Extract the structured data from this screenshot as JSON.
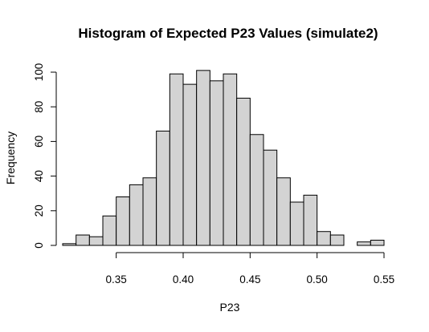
{
  "chart_data": {
    "type": "bar",
    "title": "Histogram of Expected P23 Values (simulate2)",
    "xlabel": "P23",
    "ylabel": "Frequency",
    "bin_width": 0.01,
    "bin_start": 0.31,
    "frequencies": [
      1,
      6,
      5,
      17,
      28,
      35,
      39,
      66,
      99,
      93,
      101,
      95,
      99,
      85,
      64,
      55,
      39,
      25,
      29,
      8,
      6,
      0,
      2,
      3
    ],
    "xlim": [
      0.31,
      0.55
    ],
    "ylim": [
      0,
      100
    ],
    "x_ticks": [
      "0.35",
      "0.40",
      "0.45",
      "0.50",
      "0.55"
    ],
    "y_ticks": [
      "0",
      "20",
      "40",
      "60",
      "80",
      "100"
    ],
    "grid": false,
    "colors": {
      "bar_fill": "#d3d3d3",
      "bar_stroke": "#000000"
    }
  }
}
